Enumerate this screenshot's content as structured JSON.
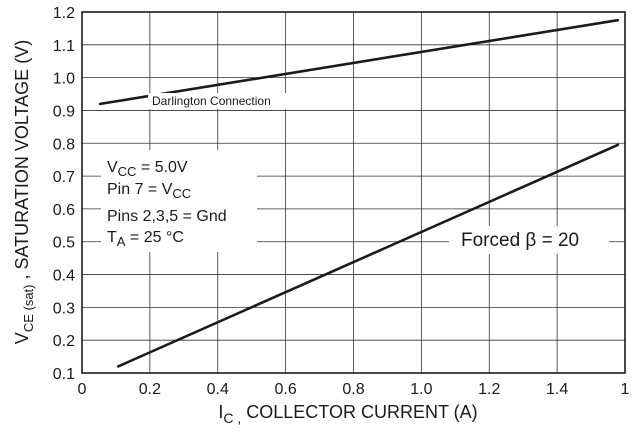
{
  "chart_data": {
    "type": "line",
    "xlabel": {
      "main": "I",
      "sub": "C ,",
      "rest": " COLLECTOR CURRENT (A)"
    },
    "ylabel": {
      "main": "V",
      "sub": "CE (sat)",
      "rest": " , SATURATION VOLTAGE  (V)"
    },
    "xlim": [
      0,
      1.5
    ],
    "ylim": [
      0.1,
      1.2
    ],
    "x_ticks": [
      "0",
      "0.2",
      "0.4",
      "0.6",
      "0.8",
      "1.0",
      "1.2",
      "1.4",
      "1"
    ],
    "y_ticks": [
      "0.1",
      "0.2",
      "0.3",
      "0.4",
      "0.5",
      "0.6",
      "0.7",
      "0.8",
      "0.9",
      "1.0",
      "1.1",
      "1.2"
    ],
    "grid": true,
    "series": [
      {
        "name": "Darlington Connection",
        "x": [
          0.05,
          1.48
        ],
        "y": [
          0.92,
          1.175
        ]
      },
      {
        "name": "Forced β = 20",
        "x": [
          0.1,
          1.48
        ],
        "y": [
          0.12,
          0.795
        ]
      }
    ],
    "conditions": {
      "vcc": {
        "main": "V",
        "sub": "CC",
        "rest": " = 5.0V"
      },
      "pin7": {
        "main": "Pin 7 = V",
        "sub": "CC",
        "rest": ""
      },
      "pins": "Pins 2,3,5 = Gnd",
      "ta": {
        "main": "T",
        "sub": "A",
        "rest": " = 25 °C"
      }
    }
  }
}
